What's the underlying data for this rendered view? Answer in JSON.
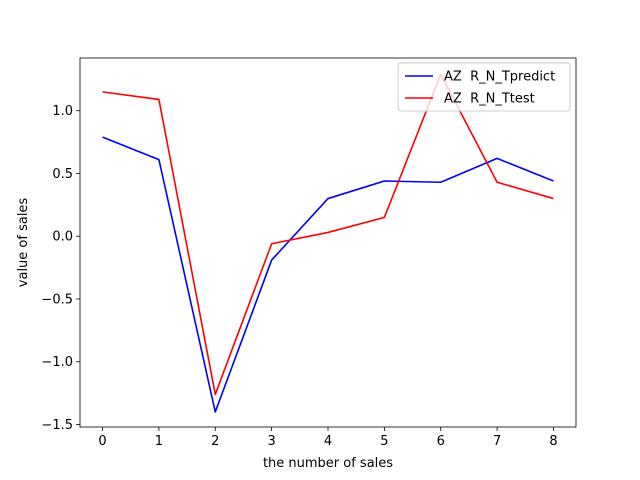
{
  "chart_data": {
    "type": "line",
    "title": "",
    "xlabel": "the number of sales",
    "ylabel": "value of sales",
    "x": [
      0,
      1,
      2,
      3,
      4,
      5,
      6,
      7,
      8
    ],
    "xlim": [
      -0.4,
      8.4
    ],
    "ylim": [
      -1.52,
      1.42
    ],
    "xticks": [
      0,
      1,
      2,
      3,
      4,
      5,
      6,
      7,
      8
    ],
    "yticks": [
      -1.5,
      -1.0,
      -0.5,
      0.0,
      0.5,
      1.0
    ],
    "ytick_labels": [
      "−1.5",
      "−1.0",
      "−0.5",
      "0.0",
      "0.5",
      "1.0"
    ],
    "grid": false,
    "legend_position": "top-right",
    "series": [
      {
        "name": "AZ  R_N_Tpredict",
        "color": "#0000ff",
        "values": [
          0.79,
          0.61,
          -1.4,
          -0.19,
          0.3,
          0.44,
          0.43,
          0.62,
          0.44
        ]
      },
      {
        "name": "AZ  R_N_Ttest",
        "color": "#ff0000",
        "values": [
          1.15,
          1.09,
          -1.26,
          -0.06,
          0.03,
          0.15,
          1.29,
          0.43,
          0.3
        ]
      }
    ]
  }
}
